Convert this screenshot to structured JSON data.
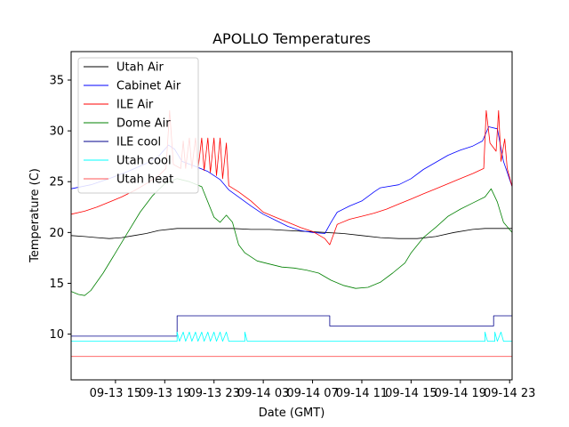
{
  "chart_data": {
    "type": "line",
    "title": "APOLLO Temperatures",
    "xlabel": "Date (GMT)",
    "ylabel": "Temperature (C)",
    "x_unit": "hours since 09-13 00:00 GMT",
    "xlim": [
      11.4,
      47.2
    ],
    "ylim": [
      5.5,
      37.8
    ],
    "grid": false,
    "legend_position": "top-left",
    "x_ticks": [
      {
        "x": 15,
        "label": "09-13 15"
      },
      {
        "x": 19,
        "label": "09-13 19"
      },
      {
        "x": 23,
        "label": "09-13 23"
      },
      {
        "x": 27,
        "label": "09-14 03"
      },
      {
        "x": 31,
        "label": "09-14 07"
      },
      {
        "x": 35,
        "label": "09-14 11"
      },
      {
        "x": 39,
        "label": "09-14 15"
      },
      {
        "x": 43,
        "label": "09-14 19"
      },
      {
        "x": 47,
        "label": "09-14 23"
      }
    ],
    "y_ticks": [
      {
        "y": 10,
        "label": "10"
      },
      {
        "y": 15,
        "label": "15"
      },
      {
        "y": 20,
        "label": "20"
      },
      {
        "y": 25,
        "label": "25"
      },
      {
        "y": 30,
        "label": "30"
      },
      {
        "y": 35,
        "label": "35"
      }
    ],
    "series": [
      {
        "name": "Utah Air",
        "color": "#000000",
        "points": [
          [
            11.4,
            19.7
          ],
          [
            12.5,
            19.6
          ],
          [
            13.5,
            19.5
          ],
          [
            14.5,
            19.4
          ],
          [
            15.5,
            19.5
          ],
          [
            16.5,
            19.7
          ],
          [
            17.5,
            19.9
          ],
          [
            18.5,
            20.2
          ],
          [
            20.0,
            20.4
          ],
          [
            21.5,
            20.4
          ],
          [
            23.0,
            20.4
          ],
          [
            24.5,
            20.4
          ],
          [
            26.0,
            20.3
          ],
          [
            27.5,
            20.3
          ],
          [
            29.0,
            20.2
          ],
          [
            30.5,
            20.1
          ],
          [
            32.0,
            20.0
          ],
          [
            33.5,
            19.9
          ],
          [
            35.0,
            19.7
          ],
          [
            36.5,
            19.5
          ],
          [
            38.0,
            19.4
          ],
          [
            39.5,
            19.4
          ],
          [
            41.0,
            19.6
          ],
          [
            42.5,
            20.0
          ],
          [
            44.0,
            20.3
          ],
          [
            45.0,
            20.4
          ],
          [
            46.0,
            20.4
          ],
          [
            47.2,
            20.4
          ]
        ]
      },
      {
        "name": "Cabinet Air",
        "color": "#0000ff",
        "points": [
          [
            11.4,
            24.3
          ],
          [
            13.0,
            24.7
          ],
          [
            14.5,
            25.3
          ],
          [
            16.0,
            26.0
          ],
          [
            17.5,
            26.8
          ],
          [
            18.5,
            27.5
          ],
          [
            19.3,
            28.6
          ],
          [
            19.8,
            28.2
          ],
          [
            20.4,
            27.0
          ],
          [
            21.5,
            26.5
          ],
          [
            22.5,
            26.0
          ],
          [
            23.5,
            25.2
          ],
          [
            24.2,
            24.2
          ],
          [
            25.0,
            23.5
          ],
          [
            26.0,
            22.6
          ],
          [
            27.0,
            21.8
          ],
          [
            28.0,
            21.2
          ],
          [
            29.0,
            20.6
          ],
          [
            30.0,
            20.2
          ],
          [
            31.0,
            20.0
          ],
          [
            32.0,
            19.9
          ],
          [
            32.5,
            21.0
          ],
          [
            33.0,
            22.0
          ],
          [
            34.0,
            22.6
          ],
          [
            35.0,
            23.1
          ],
          [
            36.0,
            24.0
          ],
          [
            36.5,
            24.4
          ],
          [
            38.0,
            24.7
          ],
          [
            39.0,
            25.3
          ],
          [
            40.0,
            26.2
          ],
          [
            41.0,
            26.9
          ],
          [
            42.0,
            27.6
          ],
          [
            43.0,
            28.1
          ],
          [
            44.0,
            28.5
          ],
          [
            44.8,
            29.0
          ],
          [
            45.3,
            30.4
          ],
          [
            46.0,
            30.2
          ],
          [
            46.5,
            27.0
          ],
          [
            47.2,
            24.5
          ]
        ]
      },
      {
        "name": "ILE Air",
        "color": "#ff0000",
        "points": [
          [
            11.4,
            21.8
          ],
          [
            12.5,
            22.1
          ],
          [
            13.5,
            22.5
          ],
          [
            14.5,
            23.0
          ],
          [
            15.5,
            23.5
          ],
          [
            16.5,
            24.1
          ],
          [
            17.5,
            24.8
          ],
          [
            18.5,
            25.6
          ],
          [
            19.1,
            26.3
          ],
          [
            19.4,
            32.0
          ],
          [
            19.7,
            26.7
          ],
          [
            20.3,
            26.3
          ],
          [
            20.5,
            29.0
          ],
          [
            20.7,
            26.3
          ],
          [
            21.0,
            29.3
          ],
          [
            21.2,
            26.3
          ],
          [
            21.5,
            29.3
          ],
          [
            21.7,
            26.2
          ],
          [
            22.0,
            29.3
          ],
          [
            22.2,
            26.1
          ],
          [
            22.5,
            29.3
          ],
          [
            22.7,
            25.9
          ],
          [
            23.0,
            29.3
          ],
          [
            23.2,
            25.6
          ],
          [
            23.5,
            29.3
          ],
          [
            23.7,
            25.3
          ],
          [
            24.0,
            28.8
          ],
          [
            24.2,
            24.6
          ],
          [
            25.0,
            24.0
          ],
          [
            26.0,
            23.1
          ],
          [
            27.0,
            22.0
          ],
          [
            28.0,
            21.5
          ],
          [
            29.0,
            21.0
          ],
          [
            30.0,
            20.5
          ],
          [
            31.0,
            20.1
          ],
          [
            32.0,
            19.4
          ],
          [
            32.4,
            18.8
          ],
          [
            33.0,
            20.8
          ],
          [
            34.0,
            21.3
          ],
          [
            35.0,
            21.6
          ],
          [
            36.0,
            21.9
          ],
          [
            37.0,
            22.3
          ],
          [
            38.0,
            22.8
          ],
          [
            39.0,
            23.3
          ],
          [
            40.0,
            23.8
          ],
          [
            41.0,
            24.3
          ],
          [
            42.0,
            24.8
          ],
          [
            43.0,
            25.3
          ],
          [
            44.0,
            25.8
          ],
          [
            44.9,
            26.3
          ],
          [
            45.1,
            32.0
          ],
          [
            45.4,
            28.8
          ],
          [
            45.9,
            28.0
          ],
          [
            46.1,
            32.0
          ],
          [
            46.3,
            27.0
          ],
          [
            46.6,
            29.2
          ],
          [
            46.8,
            26.3
          ],
          [
            47.2,
            24.5
          ]
        ]
      },
      {
        "name": "Dome Air",
        "color": "#008000",
        "points": [
          [
            11.4,
            14.2
          ],
          [
            12.0,
            13.9
          ],
          [
            12.5,
            13.8
          ],
          [
            13.0,
            14.3
          ],
          [
            14.0,
            16.0
          ],
          [
            15.0,
            18.0
          ],
          [
            16.0,
            20.0
          ],
          [
            17.0,
            22.0
          ],
          [
            18.0,
            23.6
          ],
          [
            19.0,
            24.8
          ],
          [
            20.0,
            25.3
          ],
          [
            21.0,
            25.0
          ],
          [
            22.0,
            24.5
          ],
          [
            23.0,
            21.5
          ],
          [
            23.5,
            21.0
          ],
          [
            24.0,
            21.7
          ],
          [
            24.5,
            21.0
          ],
          [
            25.0,
            18.8
          ],
          [
            25.5,
            18.0
          ],
          [
            26.5,
            17.2
          ],
          [
            27.5,
            16.9
          ],
          [
            28.5,
            16.6
          ],
          [
            29.5,
            16.5
          ],
          [
            30.5,
            16.3
          ],
          [
            31.5,
            16.0
          ],
          [
            32.5,
            15.3
          ],
          [
            33.5,
            14.8
          ],
          [
            34.5,
            14.5
          ],
          [
            35.5,
            14.6
          ],
          [
            36.5,
            15.1
          ],
          [
            37.5,
            16.0
          ],
          [
            38.5,
            17.0
          ],
          [
            39.0,
            18.0
          ],
          [
            40.0,
            19.5
          ],
          [
            41.0,
            20.5
          ],
          [
            42.0,
            21.6
          ],
          [
            43.0,
            22.3
          ],
          [
            44.0,
            22.9
          ],
          [
            45.0,
            23.5
          ],
          [
            45.5,
            24.3
          ],
          [
            46.0,
            23.0
          ],
          [
            46.5,
            21.0
          ],
          [
            47.2,
            20.0
          ]
        ]
      },
      {
        "name": "ILE cool",
        "color": "#00008b",
        "points": [
          [
            11.4,
            9.8
          ],
          [
            20.0,
            9.8
          ],
          [
            20.0,
            11.8
          ],
          [
            32.4,
            11.8
          ],
          [
            32.4,
            10.8
          ],
          [
            45.7,
            10.8
          ],
          [
            45.7,
            11.8
          ],
          [
            47.2,
            11.8
          ]
        ]
      },
      {
        "name": "Utah cool",
        "color": "#00ffff",
        "points": [
          [
            11.4,
            9.3
          ],
          [
            20.0,
            9.3
          ],
          [
            20.0,
            10.2
          ],
          [
            20.2,
            9.3
          ],
          [
            20.5,
            10.2
          ],
          [
            20.7,
            9.3
          ],
          [
            21.0,
            10.2
          ],
          [
            21.2,
            9.3
          ],
          [
            21.5,
            10.2
          ],
          [
            21.7,
            9.3
          ],
          [
            22.0,
            10.2
          ],
          [
            22.2,
            9.3
          ],
          [
            22.5,
            10.2
          ],
          [
            22.7,
            9.3
          ],
          [
            23.0,
            10.2
          ],
          [
            23.2,
            9.3
          ],
          [
            23.5,
            10.2
          ],
          [
            23.7,
            9.3
          ],
          [
            24.0,
            10.2
          ],
          [
            24.2,
            9.3
          ],
          [
            25.5,
            9.3
          ],
          [
            25.5,
            10.2
          ],
          [
            25.7,
            9.3
          ],
          [
            45.0,
            9.3
          ],
          [
            45.0,
            10.2
          ],
          [
            45.2,
            9.3
          ],
          [
            45.8,
            9.3
          ],
          [
            45.8,
            10.2
          ],
          [
            46.0,
            9.3
          ],
          [
            46.3,
            10.2
          ],
          [
            46.5,
            9.3
          ],
          [
            47.2,
            9.3
          ]
        ]
      },
      {
        "name": "Utah heat",
        "color": "#ff5555",
        "points": [
          [
            11.4,
            7.8
          ],
          [
            47.2,
            7.8
          ]
        ]
      }
    ]
  }
}
